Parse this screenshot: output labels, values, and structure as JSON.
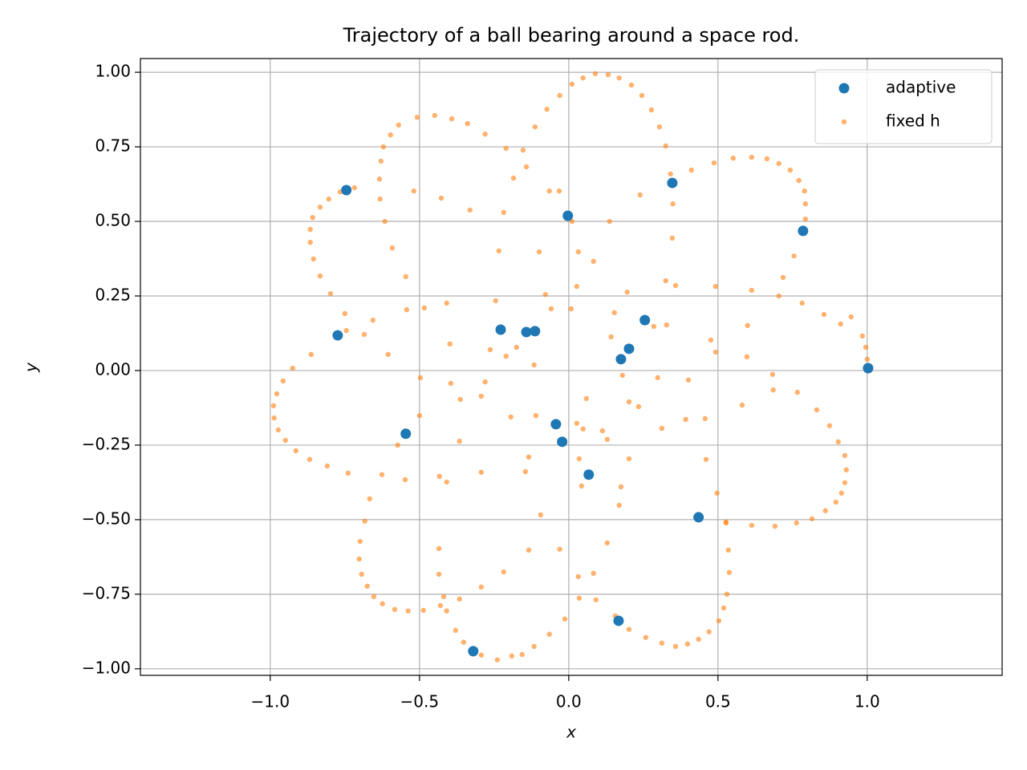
{
  "chart_data": {
    "type": "scatter",
    "title": "Trajectory of a ball bearing around a space rod.",
    "x_label": "x",
    "y_label": "y",
    "xlim": [
      -1.435,
      1.452
    ],
    "ylim": [
      -1.022,
      1.046
    ],
    "xticks": [
      {
        "value": -1,
        "label": "−1.0"
      },
      {
        "value": -0.5,
        "label": "−0.5"
      },
      {
        "value": 0,
        "label": "0.0"
      },
      {
        "value": 0.5,
        "label": "0.5"
      },
      {
        "value": 1,
        "label": "1.0"
      }
    ],
    "yticks": [
      {
        "value": 1,
        "label": "1.00"
      },
      {
        "value": 0.75,
        "label": "0.75"
      },
      {
        "value": 0.5,
        "label": "0.50"
      },
      {
        "value": 0.25,
        "label": "0.25"
      },
      {
        "value": 0,
        "label": "0.00"
      },
      {
        "value": -0.25,
        "label": "−0.25"
      },
      {
        "value": -0.5,
        "label": "−0.50"
      },
      {
        "value": -0.75,
        "label": "−0.75"
      },
      {
        "value": -1,
        "label": "−1.00"
      }
    ],
    "grid": true,
    "legend": "upper right",
    "series": [
      {
        "name": "adaptive",
        "color": "#1f77b4",
        "x": [
          -0.745,
          0.347,
          -0.003,
          0.785,
          -0.774,
          -0.228,
          -0.142,
          -0.113,
          0.255,
          0.202,
          0.175,
          1.003,
          -0.546,
          -0.043,
          -0.022,
          0.067,
          0.435,
          0.167,
          -0.32
        ],
        "y": [
          0.605,
          0.629,
          0.519,
          0.468,
          0.118,
          0.137,
          0.129,
          0.132,
          0.169,
          0.073,
          0.038,
          0.008,
          -0.212,
          -0.18,
          -0.239,
          -0.349,
          -0.492,
          -0.839,
          -0.941
        ]
      },
      {
        "name": "fixed h",
        "color": "#ff7f0e",
        "x": [
          0.089,
          0.132,
          0.169,
          0.21,
          0.245,
          0.277,
          0.304,
          0.325,
          0.341,
          0.048,
          0.011,
          -0.03,
          -0.073,
          -0.113,
          -0.449,
          -0.508,
          -0.57,
          -0.597,
          -0.621,
          -0.629,
          -0.634,
          -0.632,
          -0.616,
          -0.591,
          -0.392,
          -0.339,
          -0.28,
          -0.21,
          -0.153,
          -0.718,
          -0.766,
          -0.804,
          -0.833,
          -0.858,
          -0.866,
          -0.866,
          -0.855,
          -0.833,
          -0.798,
          -0.75,
          -0.745,
          -0.685,
          -0.656,
          0.411,
          0.487,
          0.551,
          0.613,
          0.664,
          0.704,
          0.742,
          0.771,
          0.79,
          0.793,
          0.793,
          0.755,
          0.718,
          0.704,
          0.782,
          0.855,
          0.911,
          0.946,
          0.984,
          0.995,
          1.0,
          1.003,
          -0.863,
          -0.925,
          -0.957,
          -0.978,
          -0.989,
          -0.987,
          -0.973,
          -0.949,
          -0.914,
          -0.868,
          -0.809,
          -0.739,
          -0.667,
          -0.683,
          -0.699,
          -0.702,
          -0.694,
          -0.675,
          -0.653,
          -0.624,
          -0.583,
          -0.538,
          -0.487,
          -0.43,
          -0.409,
          -0.379,
          -0.352,
          -0.293,
          -0.239,
          -0.191,
          -0.156,
          -0.116,
          -0.065,
          -0.013,
          0.156,
          0.202,
          0.258,
          0.312,
          0.358,
          0.398,
          0.435,
          0.47,
          0.503,
          0.519,
          0.53,
          0.538,
          0.535,
          0.527,
          0.497,
          0.457,
          0.613,
          0.691,
          0.763,
          0.815,
          0.86,
          0.895,
          0.914,
          0.925,
          0.93,
          0.925,
          0.903,
          0.874,
          0.831,
          0.766,
          0.683,
          0.083,
          0.032,
          0.011,
          -0.032,
          0.137,
          0.239,
          0.349,
          0.347,
          0.325,
          0.358,
          0.492,
          0.613,
          0.599,
          0.492,
          0.597,
          0.401,
          0.298,
          0.202,
          0.234,
          0.18,
          0.142,
          0.153,
          0.196,
          0.328,
          0.285,
          0.476,
          0.312,
          0.392,
          0.685,
          0.581,
          0.027,
          0.008,
          -0.059,
          -0.078,
          -0.116,
          -0.175,
          -0.21,
          -0.263,
          -0.28,
          -0.395,
          -0.398,
          -0.409,
          -0.484,
          -0.543,
          -0.546,
          -0.519,
          -0.427,
          -0.331,
          -0.218,
          -0.234,
          -0.245,
          -0.099,
          -0.065,
          -0.185,
          -0.142,
          0.059,
          0.027,
          0.048,
          0.113,
          0.129,
          0.035,
          0.043,
          0.202,
          0.175,
          0.169,
          0.129,
          0.083,
          0.032,
          0.035,
          0.091,
          -0.03,
          -0.094,
          -0.134,
          -0.134,
          -0.145,
          -0.194,
          -0.11,
          -0.293,
          -0.293,
          -0.363,
          -0.366,
          -0.497,
          -0.5,
          -0.433,
          -0.409,
          -0.435,
          -0.435,
          -0.419,
          -0.366,
          -0.293,
          -0.218,
          -0.573,
          -0.548,
          -0.626,
          -0.605,
          0.425,
          0.527,
          0.46
        ],
        "y": [
          0.995,
          0.992,
          0.981,
          0.957,
          0.922,
          0.874,
          0.817,
          0.753,
          0.659,
          0.981,
          0.96,
          0.922,
          0.876,
          0.817,
          0.855,
          0.849,
          0.823,
          0.79,
          0.75,
          0.702,
          0.642,
          0.575,
          0.5,
          0.411,
          0.844,
          0.828,
          0.793,
          0.745,
          0.739,
          0.613,
          0.599,
          0.575,
          0.548,
          0.513,
          0.473,
          0.43,
          0.374,
          0.317,
          0.258,
          0.191,
          0.134,
          0.121,
          0.169,
          0.672,
          0.696,
          0.712,
          0.715,
          0.71,
          0.694,
          0.672,
          0.637,
          0.602,
          0.559,
          0.508,
          0.384,
          0.312,
          0.25,
          0.226,
          0.188,
          0.156,
          0.18,
          0.116,
          0.078,
          0.038,
          0.003,
          0.054,
          0.008,
          -0.035,
          -0.078,
          -0.118,
          -0.159,
          -0.199,
          -0.234,
          -0.269,
          -0.298,
          -0.32,
          -0.344,
          -0.43,
          -0.505,
          -0.573,
          -0.632,
          -0.683,
          -0.723,
          -0.758,
          -0.782,
          -0.801,
          -0.806,
          -0.804,
          -0.788,
          -0.806,
          -0.871,
          -0.911,
          -0.954,
          -0.97,
          -0.957,
          -0.952,
          -0.925,
          -0.884,
          -0.833,
          -0.823,
          -0.868,
          -0.895,
          -0.914,
          -0.925,
          -0.917,
          -0.901,
          -0.876,
          -0.839,
          -0.796,
          -0.75,
          -0.677,
          -0.602,
          -0.511,
          -0.411,
          -0.161,
          -0.519,
          -0.522,
          -0.511,
          -0.497,
          -0.47,
          -0.441,
          -0.411,
          -0.376,
          -0.333,
          -0.285,
          -0.239,
          -0.185,
          -0.132,
          -0.073,
          -0.013,
          0.366,
          0.398,
          0.5,
          0.602,
          0.5,
          0.589,
          0.559,
          0.444,
          0.301,
          0.285,
          0.282,
          0.269,
          0.151,
          0.062,
          0.046,
          -0.032,
          -0.024,
          -0.105,
          -0.121,
          -0.016,
          0.113,
          0.194,
          0.263,
          0.153,
          0.148,
          0.102,
          -0.194,
          -0.164,
          -0.065,
          -0.116,
          0.282,
          0.207,
          0.207,
          0.255,
          0.019,
          0.078,
          0.048,
          0.07,
          -0.038,
          -0.043,
          0.089,
          0.226,
          0.21,
          0.204,
          0.315,
          0.602,
          0.578,
          0.538,
          0.53,
          0.401,
          0.234,
          0.398,
          0.602,
          0.645,
          0.683,
          -0.094,
          -0.177,
          -0.196,
          -0.202,
          -0.231,
          -0.296,
          -0.387,
          -0.296,
          -0.39,
          -0.452,
          -0.578,
          -0.68,
          -0.691,
          -0.763,
          -0.769,
          -0.599,
          -0.484,
          -0.602,
          -0.29,
          -0.339,
          -0.156,
          -0.151,
          -0.341,
          -0.086,
          -0.097,
          -0.237,
          -0.024,
          -0.151,
          -0.355,
          -0.374,
          -0.597,
          -0.683,
          -0.758,
          -0.766,
          -0.726,
          -0.675,
          -0.25,
          -0.366,
          -0.349,
          0.054,
          -0.492,
          -0.508,
          -0.298
        ]
      }
    ]
  }
}
